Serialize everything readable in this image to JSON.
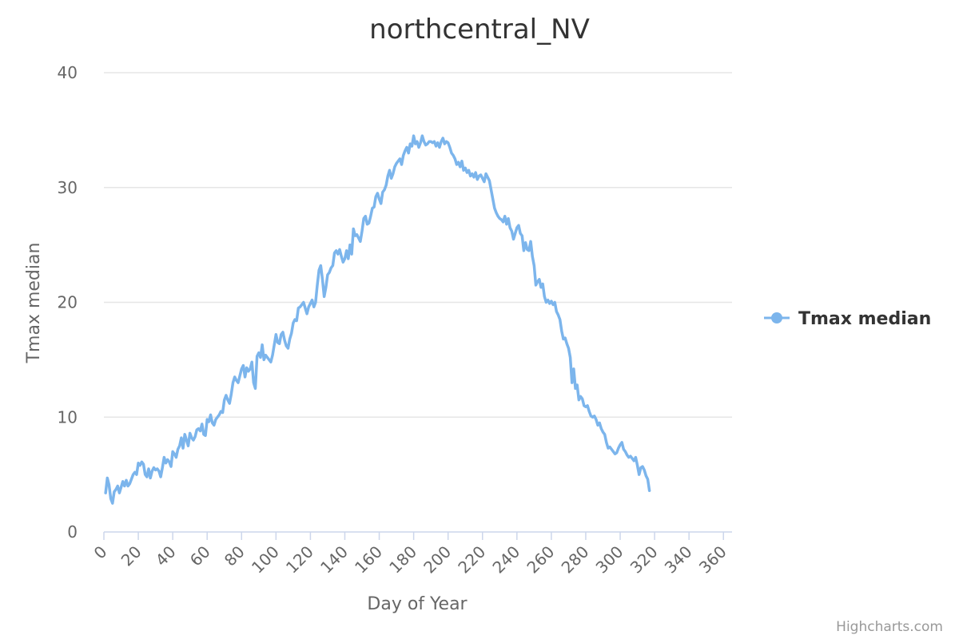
{
  "chart_data": {
    "type": "line",
    "title": "northcentral_NV",
    "xlabel": "Day of Year",
    "ylabel": "Tmax median",
    "xlim": [
      0,
      365
    ],
    "ylim": [
      0,
      40
    ],
    "x_ticks": [
      0,
      20,
      40,
      60,
      80,
      100,
      120,
      140,
      160,
      180,
      200,
      220,
      240,
      260,
      280,
      300,
      320,
      340,
      360
    ],
    "y_ticks": [
      0,
      10,
      20,
      30,
      40
    ],
    "grid": "horizontal",
    "legend_position": "right",
    "credits": "Highcharts.com",
    "series": [
      {
        "name": "Tmax median",
        "color": "#7cb5ec",
        "x_start": 1,
        "x_step": 1,
        "values": [
          3.4,
          4.7,
          4.1,
          2.9,
          2.5,
          3.5,
          3.7,
          4.0,
          3.4,
          3.9,
          4.4,
          4.0,
          4.5,
          4.0,
          4.2,
          4.6,
          5.0,
          5.2,
          5.0,
          6.0,
          5.8,
          6.1,
          5.9,
          5.0,
          4.8,
          5.5,
          4.7,
          5.3,
          5.6,
          5.4,
          5.5,
          5.3,
          4.8,
          5.6,
          6.5,
          6.0,
          6.3,
          6.1,
          5.7,
          7.0,
          6.8,
          6.5,
          7.2,
          7.5,
          8.2,
          7.3,
          8.5,
          8.0,
          7.5,
          8.6,
          8.2,
          8.0,
          8.3,
          8.9,
          9.0,
          8.8,
          9.4,
          8.5,
          8.4,
          9.8,
          9.6,
          10.2,
          9.5,
          9.3,
          9.8,
          10.0,
          10.2,
          10.5,
          10.4,
          11.5,
          11.9,
          11.5,
          11.2,
          12.0,
          13.0,
          13.5,
          13.2,
          13.0,
          13.6,
          14.2,
          14.5,
          13.5,
          14.3,
          14.0,
          14.2,
          14.8,
          13.0,
          12.5,
          15.3,
          15.6,
          15.2,
          16.3,
          15.0,
          15.4,
          15.2,
          15.0,
          14.8,
          15.4,
          16.3,
          17.2,
          16.5,
          16.4,
          17.2,
          17.4,
          16.7,
          16.2,
          16.0,
          16.8,
          17.3,
          18.2,
          18.5,
          18.4,
          19.5,
          19.6,
          19.8,
          20.0,
          19.5,
          19.0,
          19.6,
          19.9,
          20.2,
          19.6,
          20.0,
          21.5,
          22.8,
          23.2,
          22.0,
          20.5,
          21.3,
          22.4,
          22.6,
          23.0,
          23.2,
          24.3,
          24.5,
          24.2,
          24.6,
          24.0,
          23.5,
          23.8,
          24.5,
          23.8,
          25.0,
          24.2,
          26.4,
          25.8,
          25.9,
          25.6,
          25.3,
          26.2,
          27.3,
          27.5,
          26.8,
          26.9,
          27.5,
          28.2,
          28.3,
          29.2,
          29.5,
          29.0,
          28.6,
          29.6,
          29.8,
          30.2,
          31.0,
          31.5,
          30.8,
          31.2,
          31.8,
          32.1,
          32.3,
          32.5,
          32.0,
          32.8,
          33.2,
          33.5,
          33.0,
          33.8,
          33.6,
          34.5,
          33.8,
          34.0,
          33.5,
          33.9,
          34.5,
          34.0,
          33.7,
          33.8,
          34.0,
          34.0,
          33.9,
          34.0,
          33.6,
          33.9,
          33.5,
          34.0,
          34.3,
          33.8,
          34.0,
          33.9,
          33.5,
          33.0,
          32.8,
          32.5,
          32.0,
          32.2,
          31.8,
          32.3,
          31.5,
          31.7,
          31.3,
          31.5,
          31.0,
          31.2,
          30.9,
          31.3,
          30.7,
          31.0,
          31.1,
          30.8,
          30.5,
          31.2,
          30.9,
          30.6,
          29.8,
          29.0,
          28.2,
          27.8,
          27.5,
          27.3,
          27.2,
          27.0,
          27.5,
          26.8,
          27.3,
          26.5,
          26.2,
          25.5,
          26.0,
          26.5,
          26.7,
          26.0,
          25.8,
          24.5,
          25.2,
          24.6,
          24.5,
          25.3,
          24.0,
          23.2,
          21.5,
          21.8,
          22.0,
          21.3,
          21.6,
          20.5,
          20.0,
          20.2,
          19.9,
          20.1,
          19.8,
          20.0,
          19.2,
          18.9,
          18.5,
          17.5,
          16.8,
          16.9,
          16.4,
          16.0,
          15.2,
          13.0,
          14.2,
          12.5,
          12.8,
          11.5,
          11.8,
          11.6,
          11.0,
          10.9,
          11.0,
          10.5,
          10.1,
          10.0,
          10.1,
          9.8,
          9.3,
          9.5,
          9.0,
          8.7,
          8.5,
          7.8,
          7.3,
          7.4,
          7.2,
          7.0,
          6.8,
          6.9,
          7.3,
          7.6,
          7.8,
          7.2,
          7.0,
          6.7,
          6.5,
          6.6,
          6.4,
          6.2,
          6.5,
          5.8,
          5.0,
          5.6,
          5.7,
          5.4,
          4.9,
          4.6,
          3.6
        ]
      }
    ]
  }
}
